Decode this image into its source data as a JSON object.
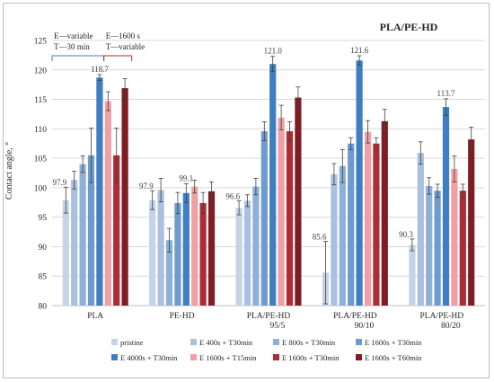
{
  "chart_data": {
    "type": "bar",
    "title": "PLA/PE-HD",
    "ylabel": "Contact angle, °",
    "xlabel": "",
    "ylim": [
      80,
      125
    ],
    "yticks": [
      80,
      85,
      90,
      95,
      100,
      105,
      110,
      115,
      120,
      125
    ],
    "grid": true,
    "legend_position": "bottom",
    "categories": [
      "PLA",
      "PE-HD",
      "PLA/PE-HD\n95/5",
      "PLA/PE-HD\n90/10",
      "PLA/PE-HD\n80/20"
    ],
    "series": [
      {
        "name": "pristine",
        "color": "#c5d3e7",
        "values": [
          97.9,
          97.9,
          96.6,
          85.6,
          90.3
        ],
        "errors": [
          2.2,
          1.6,
          1.2,
          5.3,
          1.0
        ]
      },
      {
        "name": "E 400s + T30min",
        "color": "#a9c0e0",
        "values": [
          101.3,
          99.6,
          97.8,
          102.3,
          105.9
        ],
        "errors": [
          1.5,
          2.0,
          1.0,
          1.8,
          1.9
        ]
      },
      {
        "name": "E 800s + T30min",
        "color": "#8eafd8",
        "values": [
          104.0,
          91.1,
          100.2,
          103.7,
          100.3
        ],
        "errors": [
          1.4,
          2.0,
          1.4,
          2.8,
          1.4
        ]
      },
      {
        "name": "E 1600s + T30min",
        "color": "#6e9bcf",
        "values": [
          105.5,
          97.4,
          109.6,
          107.5,
          99.5
        ],
        "errors": [
          4.6,
          1.8,
          1.6,
          1.0,
          1.1
        ]
      },
      {
        "name": "E 4000s + T30min",
        "color": "#3f7ec2",
        "values": [
          118.7,
          99.1,
          121.0,
          121.6,
          113.7
        ],
        "errors": [
          0.5,
          1.6,
          1.3,
          0.8,
          1.4
        ]
      },
      {
        "name": "E 1600s + T15min",
        "color": "#f0a0a4",
        "values": [
          114.7,
          100.2,
          111.9,
          109.5,
          103.2
        ],
        "errors": [
          1.6,
          1.1,
          2.1,
          1.9,
          2.2
        ]
      },
      {
        "name": "E 1600s + T30min",
        "color": "#ad2c36",
        "values": [
          105.5,
          97.4,
          109.6,
          107.5,
          99.5
        ],
        "errors": [
          4.6,
          1.8,
          1.6,
          1.0,
          1.1
        ]
      },
      {
        "name": "E 1600s + T60min",
        "color": "#7f1d24",
        "values": [
          116.9,
          99.4,
          115.3,
          111.3,
          108.2
        ],
        "errors": [
          1.6,
          1.6,
          1.8,
          2.0,
          2.1
        ]
      }
    ],
    "data_labels": [
      {
        "category": 0,
        "series": 0,
        "text": "97.9"
      },
      {
        "category": 0,
        "series": 4,
        "text": "118.7"
      },
      {
        "category": 1,
        "series": 0,
        "text": "97.9"
      },
      {
        "category": 1,
        "series": 4,
        "text": "99.1"
      },
      {
        "category": 2,
        "series": 0,
        "text": "96.6"
      },
      {
        "category": 2,
        "series": 4,
        "text": "121.0"
      },
      {
        "category": 3,
        "series": 0,
        "text": "85.6"
      },
      {
        "category": 3,
        "series": 4,
        "text": "121.6"
      },
      {
        "category": 4,
        "series": 0,
        "text": "90.3"
      },
      {
        "category": 4,
        "series": 4,
        "text": "113.7"
      }
    ],
    "annotations": [
      {
        "line1": "E—variable",
        "line2": "T—30 min",
        "color": "#3f7ec2"
      },
      {
        "line1": "E—1600 s",
        "line2": "T—variable",
        "color": "#ad2c36"
      }
    ]
  }
}
